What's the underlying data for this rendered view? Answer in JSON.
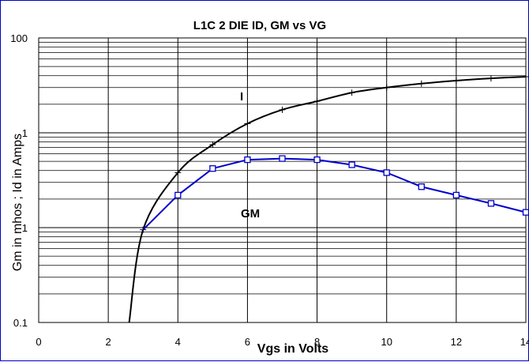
{
  "chart_data": {
    "type": "line",
    "title": "L1C  2 DIE   ID, GM vs VG",
    "xlabel": "Vgs in Volts",
    "ylabel": "Gm in  mhos ;  Id in Amps",
    "xlim": [
      0,
      14
    ],
    "ylim": [
      0.1,
      100
    ],
    "yscale": "log",
    "grid": true,
    "x_ticks": [
      "0",
      "2",
      "4",
      "6",
      "8",
      "10",
      "12",
      "14"
    ],
    "y_ticks": [
      "0.1",
      "1",
      "1",
      "100"
    ],
    "series": [
      {
        "name": "I",
        "color": "#000000",
        "marker": "plus",
        "x": [
          2.6,
          3,
          4,
          5,
          6,
          7,
          8,
          9,
          10,
          11,
          12,
          13,
          14
        ],
        "y": [
          0.1,
          0.95,
          3.8,
          7.5,
          12.5,
          17.5,
          21.5,
          26.5,
          30,
          33,
          35.5,
          37.5,
          39
        ]
      },
      {
        "name": "GM",
        "color": "#0000cc",
        "marker": "square",
        "x": [
          3,
          4,
          5,
          6,
          7,
          8,
          9,
          10,
          11,
          12,
          13,
          14
        ],
        "y": [
          0.95,
          2.2,
          4.2,
          5.2,
          5.35,
          5.2,
          4.6,
          3.8,
          2.7,
          2.2,
          1.8,
          1.45
        ]
      }
    ]
  }
}
